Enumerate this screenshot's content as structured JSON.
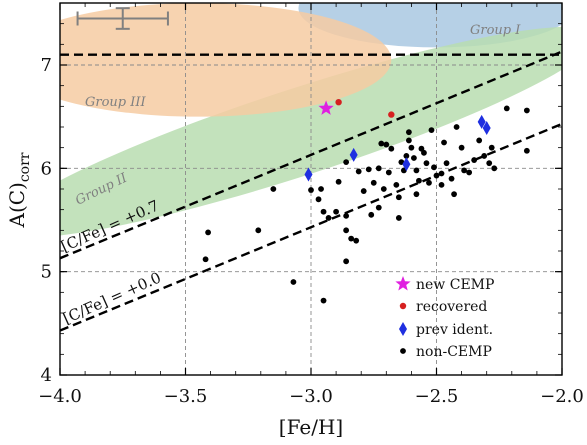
{
  "chart_data": {
    "type": "scatter",
    "xlabel": "[Fe/H]",
    "ylabel": "A(C)",
    "ylabel_subscript": "corr",
    "xlim": [
      -4.0,
      -2.0
    ],
    "ylim": [
      4.0,
      7.6
    ],
    "x_ticks": [
      -4.0,
      -3.5,
      -3.0,
      -2.5,
      -2.0
    ],
    "y_ticks": [
      4,
      5,
      6,
      7
    ],
    "x_tick_labels": [
      "−4.0",
      "−3.5",
      "−3.0",
      "−2.5",
      "−2.0"
    ],
    "y_tick_labels": [
      "4",
      "5",
      "6",
      "7"
    ],
    "grid": "dashed at major ticks",
    "regions": [
      {
        "label": "Group I",
        "color": "#a9c8e2"
      },
      {
        "label": "Group II",
        "color": "#b9ddb0"
      },
      {
        "label": "Group III",
        "color": "#f6cba2"
      }
    ],
    "reference_lines": [
      {
        "label": "[C/Fe] = +0.7",
        "cfe": 0.7,
        "intercept": 8.43,
        "slope": 1
      },
      {
        "label": "[C/Fe] = +0.0",
        "cfe": 0.0,
        "intercept": 8.43,
        "slope": 1
      },
      {
        "label": "",
        "y": 7.1
      }
    ],
    "error_bar": {
      "x": -3.75,
      "y": 7.45,
      "xerr": 0.18,
      "yerr": 0.1
    },
    "series": [
      {
        "name": "new CEMP",
        "marker": "star",
        "color": "#e020e0",
        "points": [
          [
            -2.94,
            6.58
          ]
        ]
      },
      {
        "name": "recovered",
        "marker": "circle",
        "color": "#d62020",
        "points": [
          [
            -2.89,
            6.64
          ],
          [
            -2.68,
            6.52
          ]
        ]
      },
      {
        "name": "prev ident.",
        "marker": "diamond",
        "color": "#1f2fe0",
        "points": [
          [
            -3.01,
            5.94
          ],
          [
            -2.83,
            6.13
          ],
          [
            -2.32,
            6.45
          ],
          [
            -2.3,
            6.39
          ],
          [
            -2.62,
            6.04
          ]
        ]
      },
      {
        "name": "non-CEMP",
        "marker": "circle",
        "color": "#000000",
        "points": [
          [
            -3.41,
            5.38
          ],
          [
            -3.42,
            5.12
          ],
          [
            -3.21,
            5.4
          ],
          [
            -3.15,
            5.8
          ],
          [
            -3.07,
            4.9
          ],
          [
            -2.95,
            4.72
          ],
          [
            -3.0,
            5.79
          ],
          [
            -2.96,
            5.8
          ],
          [
            -2.95,
            5.58
          ],
          [
            -2.97,
            5.7
          ],
          [
            -2.93,
            5.52
          ],
          [
            -2.89,
            5.87
          ],
          [
            -2.86,
            6.06
          ],
          [
            -2.86,
            5.54
          ],
          [
            -2.86,
            5.4
          ],
          [
            -2.86,
            5.1
          ],
          [
            -2.84,
            5.32
          ],
          [
            -2.82,
            5.3
          ],
          [
            -2.81,
            5.97
          ],
          [
            -2.79,
            5.78
          ],
          [
            -2.77,
            5.99
          ],
          [
            -2.75,
            5.86
          ],
          [
            -2.73,
            5.62
          ],
          [
            -2.73,
            6.0
          ],
          [
            -2.72,
            6.24
          ],
          [
            -2.7,
            6.23
          ],
          [
            -2.68,
            6.19
          ],
          [
            -2.69,
            5.96
          ],
          [
            -2.66,
            5.84
          ],
          [
            -2.65,
            5.72
          ],
          [
            -2.65,
            5.52
          ],
          [
            -2.64,
            6.06
          ],
          [
            -2.63,
            5.98
          ],
          [
            -2.62,
            6.12
          ],
          [
            -2.61,
            6.35
          ],
          [
            -2.61,
            6.27
          ],
          [
            -2.6,
            6.2
          ],
          [
            -2.59,
            6.1
          ],
          [
            -2.58,
            5.98
          ],
          [
            -2.57,
            5.88
          ],
          [
            -2.56,
            6.19
          ],
          [
            -2.55,
            6.15
          ],
          [
            -2.54,
            6.05
          ],
          [
            -2.52,
            6.37
          ],
          [
            -2.51,
            6.01
          ],
          [
            -2.5,
            5.93
          ],
          [
            -2.48,
            5.95
          ],
          [
            -2.48,
            5.84
          ],
          [
            -2.47,
            6.25
          ],
          [
            -2.46,
            6.05
          ],
          [
            -2.44,
            5.9
          ],
          [
            -2.43,
            5.75
          ],
          [
            -2.42,
            6.4
          ],
          [
            -2.4,
            6.2
          ],
          [
            -2.39,
            5.98
          ],
          [
            -2.37,
            5.96
          ],
          [
            -2.35,
            6.08
          ],
          [
            -2.33,
            6.27
          ],
          [
            -2.31,
            6.12
          ],
          [
            -2.29,
            6.05
          ],
          [
            -2.28,
            6.2
          ],
          [
            -2.27,
            6.0
          ],
          [
            -2.22,
            6.58
          ],
          [
            -2.14,
            6.56
          ],
          [
            -2.14,
            6.17
          ],
          [
            -2.76,
            5.55
          ],
          [
            -2.9,
            5.58
          ],
          [
            -2.58,
            5.75
          ],
          [
            -2.53,
            5.86
          ],
          [
            -2.71,
            5.8
          ]
        ]
      }
    ],
    "legend": {
      "placement": "lower-right",
      "entries": [
        "new CEMP",
        "recovered",
        "prev ident.",
        "non-CEMP"
      ]
    }
  }
}
